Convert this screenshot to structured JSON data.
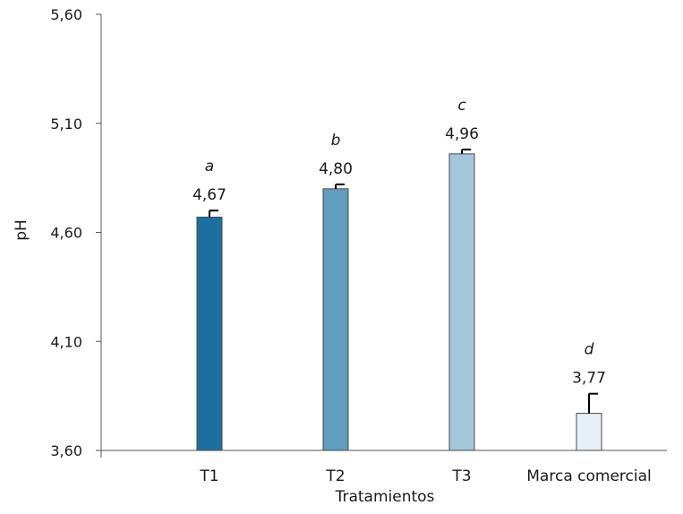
{
  "chart_data": {
    "type": "bar",
    "xlabel": "Tratamientos",
    "ylabel": "pH",
    "ylim": [
      3.6,
      5.6
    ],
    "yticks": [
      "3,60",
      "4,10",
      "4,60",
      "5,10",
      "5,60"
    ],
    "categories": [
      "T1",
      "T2",
      "T3",
      "Marca comercial"
    ],
    "values": [
      4.67,
      4.8,
      4.96,
      3.77
    ],
    "value_labels": [
      "4,67",
      "4,80",
      "4,96",
      "3,77"
    ],
    "significance_letters": [
      "a",
      "b",
      "c",
      "d"
    ],
    "error_upper": [
      0.03,
      0.02,
      0.02,
      0.09
    ],
    "colors": [
      "#1c6f9f",
      "#5f9ebd",
      "#a5c7dc",
      "#e6f0f8"
    ],
    "grid": false,
    "legend": "none"
  }
}
